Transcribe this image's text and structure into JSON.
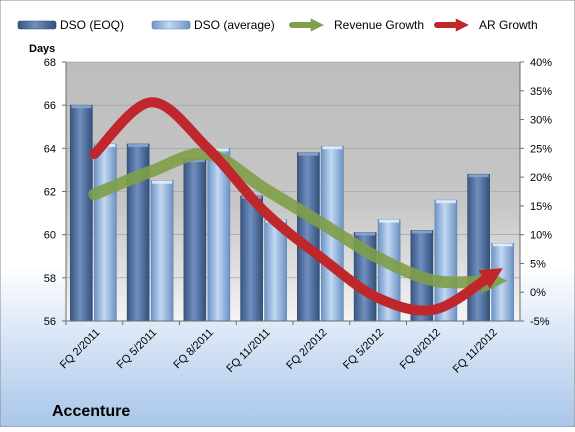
{
  "chart_data": {
    "type": "bar",
    "title": "Accenture",
    "ylabel": "Days",
    "categories": [
      "FQ 2/2011",
      "FQ 5/2011",
      "FQ 8/2011",
      "FQ 11/2011",
      "FQ 2/2012",
      "FQ 5/2012",
      "FQ 8/2012",
      "FQ 11/2012"
    ],
    "series": [
      {
        "name": "DSO (EOQ)",
        "type": "bar",
        "axis": "left",
        "color": "#4f6fa0",
        "values": [
          66.0,
          64.2,
          63.5,
          61.8,
          63.8,
          60.1,
          60.2,
          62.8
        ]
      },
      {
        "name": "DSO (average)",
        "type": "bar",
        "axis": "left",
        "color": "#8fb3df",
        "values": [
          64.2,
          62.5,
          64.0,
          60.7,
          64.1,
          60.7,
          61.6,
          59.6
        ]
      },
      {
        "name": "Revenue Growth",
        "type": "line",
        "axis": "right",
        "color": "#7f9f4a",
        "values": [
          17,
          21,
          24,
          18,
          12,
          6,
          2,
          2
        ]
      },
      {
        "name": "AR Growth",
        "type": "line",
        "axis": "right",
        "color": "#c0272d",
        "values": [
          24,
          33,
          25,
          14,
          6,
          -1,
          -3,
          3
        ]
      }
    ],
    "ylim": [
      56,
      68
    ],
    "yticks": [
      "56",
      "58",
      "60",
      "62",
      "64",
      "66",
      "68"
    ],
    "y2lim": [
      -5,
      40
    ],
    "y2ticks": [
      "-5%",
      "0%",
      "5%",
      "10%",
      "15%",
      "20%",
      "25%",
      "30%",
      "35%",
      "40%"
    ],
    "grid": true,
    "legend_position": "top"
  }
}
